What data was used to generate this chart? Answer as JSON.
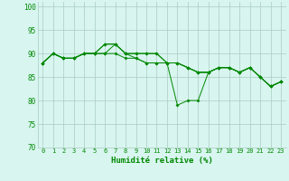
{
  "title": "",
  "xlabel": "Humidité relative (%)",
  "ylabel": "",
  "xlim": [
    -0.5,
    23.5
  ],
  "ylim": [
    70,
    101
  ],
  "yticks": [
    70,
    75,
    80,
    85,
    90,
    95,
    100
  ],
  "xticks": [
    0,
    1,
    2,
    3,
    4,
    5,
    6,
    7,
    8,
    9,
    10,
    11,
    12,
    13,
    14,
    15,
    16,
    17,
    18,
    19,
    20,
    21,
    22,
    23
  ],
  "bg_color": "#d8f5f0",
  "grid_color": "#aaccc0",
  "line_color": "#008800",
  "lines": [
    [
      88,
      90,
      89,
      89,
      90,
      90,
      92,
      92,
      90,
      90,
      90,
      90,
      88,
      79,
      80,
      80,
      86,
      87,
      87,
      86,
      87,
      85,
      83,
      84
    ],
    [
      88,
      90,
      89,
      89,
      90,
      90,
      92,
      92,
      90,
      90,
      90,
      90,
      88,
      88,
      87,
      86,
      86,
      87,
      87,
      86,
      87,
      85,
      83,
      84
    ],
    [
      88,
      90,
      89,
      89,
      90,
      90,
      90,
      90,
      89,
      89,
      88,
      88,
      88,
      88,
      87,
      86,
      86,
      87,
      87,
      86,
      87,
      85,
      83,
      84
    ],
    [
      88,
      90,
      89,
      89,
      90,
      90,
      90,
      92,
      90,
      89,
      88,
      88,
      88,
      88,
      87,
      86,
      86,
      87,
      87,
      86,
      87,
      85,
      83,
      84
    ]
  ]
}
